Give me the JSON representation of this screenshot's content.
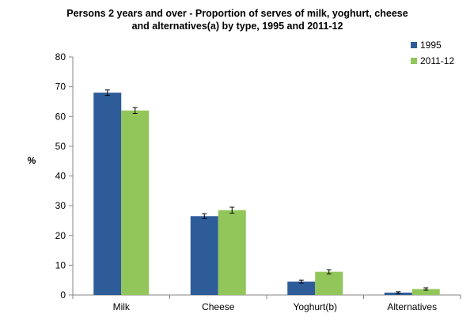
{
  "chart_data": {
    "type": "bar",
    "title_lines": [
      "Persons 2 years and over - Proportion of serves of milk, yoghurt, cheese",
      "and alternatives(a) by type, 1995 and 2011-12"
    ],
    "xlabel": "",
    "ylabel": "%",
    "ylim": [
      0,
      80
    ],
    "yticks": [
      0,
      10,
      20,
      30,
      40,
      50,
      60,
      70,
      80
    ],
    "categories": [
      "Milk",
      "Cheese",
      "Yoghurt(b)",
      "Alternatives"
    ],
    "series": [
      {
        "name": "1995",
        "color": "#2E5C99",
        "values": [
          68.0,
          26.5,
          4.5,
          0.8
        ],
        "error": [
          0.9,
          0.8,
          0.5,
          0.3
        ]
      },
      {
        "name": "2011-12",
        "color": "#92C65A",
        "values": [
          62.0,
          28.5,
          7.8,
          2.0
        ],
        "error": [
          1.0,
          1.0,
          0.7,
          0.4
        ]
      }
    ],
    "error_bars": true,
    "grid": false,
    "legend_position": "top-right"
  }
}
